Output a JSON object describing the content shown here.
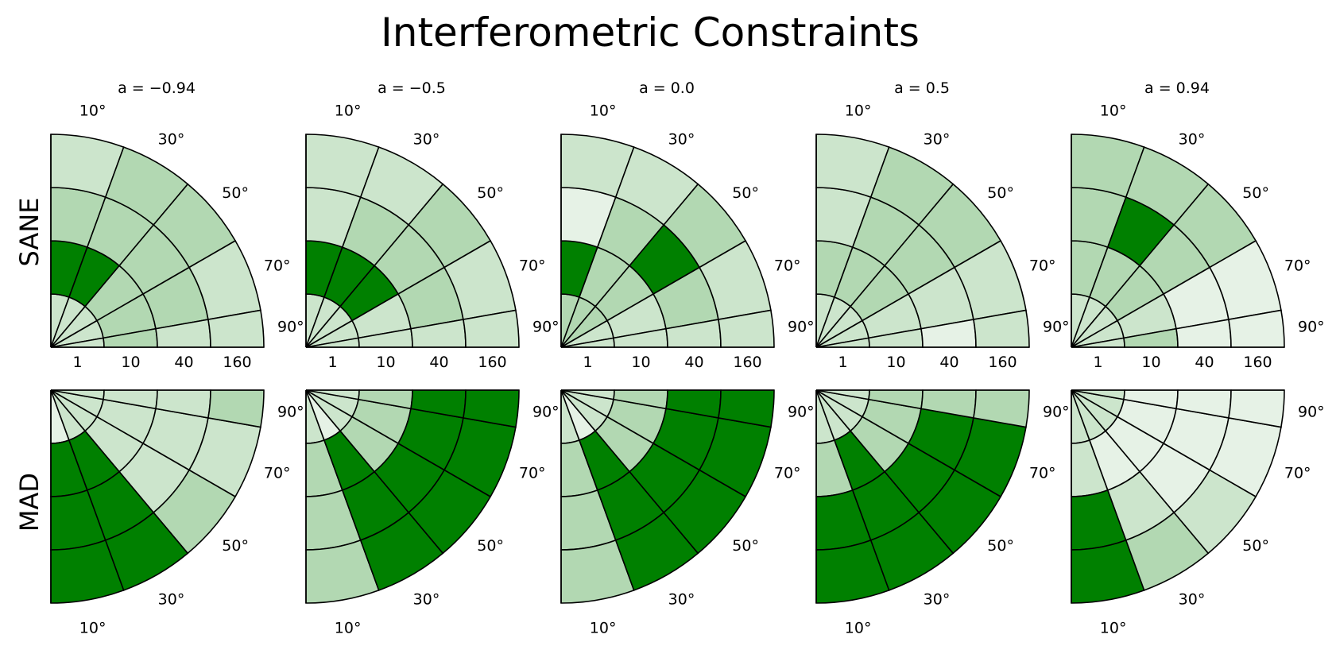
{
  "title": "Interferometric Constraints",
  "row_labels": [
    "SANE",
    "MAD"
  ],
  "chart_data": {
    "type": "heatmap",
    "title": "Interferometric Constraints",
    "projection": "polar quarter-disc (radius = R_high, angle = inclination)",
    "spin_labels": [
      "a = −0.94",
      "a = −0.5",
      "a = 0.0",
      "a = 0.5",
      "a = 0.94"
    ],
    "r_tick_labels": [
      "1",
      "10",
      "40",
      "160"
    ],
    "angle_tick_labels": [
      "10°",
      "30°",
      "50°",
      "70°",
      "90°"
    ],
    "colors": {
      "0": "#e6f2e6",
      "1": "#cce5cc",
      "2": "#b2d8b2",
      "3": "#008000"
    },
    "level_meaning": "0 = lightest green, 3 = full green (passes most constraints)",
    "grid_note": "levels[ring][angle]; ring 0 = innermost (R_high 1) to ring 3 = outermost (R_high 160); angle 0 = 10° to 4 = 90°",
    "rows": [
      {
        "name": "SANE",
        "panels": [
          {
            "spin": "a = −0.94",
            "levels": [
              [
                1,
                1,
                1,
                1,
                1
              ],
              [
                3,
                3,
                2,
                2,
                2
              ],
              [
                2,
                2,
                2,
                2,
                1
              ],
              [
                1,
                2,
                2,
                1,
                1
              ]
            ]
          },
          {
            "spin": "a = −0.5",
            "levels": [
              [
                1,
                1,
                1,
                1,
                1
              ],
              [
                3,
                3,
                3,
                1,
                1
              ],
              [
                1,
                2,
                2,
                2,
                1
              ],
              [
                1,
                1,
                2,
                1,
                1
              ]
            ]
          },
          {
            "spin": "a = 0.0",
            "levels": [
              [
                2,
                2,
                2,
                1,
                1
              ],
              [
                3,
                2,
                2,
                1,
                1
              ],
              [
                0,
                2,
                3,
                2,
                1
              ],
              [
                1,
                1,
                2,
                1,
                1
              ]
            ]
          },
          {
            "spin": "a = 0.5",
            "levels": [
              [
                1,
                1,
                1,
                1,
                1
              ],
              [
                2,
                2,
                2,
                1,
                1
              ],
              [
                1,
                2,
                2,
                1,
                0
              ],
              [
                1,
                2,
                2,
                1,
                1
              ]
            ]
          },
          {
            "spin": "a = 0.94",
            "levels": [
              [
                1,
                1,
                1,
                1,
                1
              ],
              [
                2,
                2,
                2,
                1,
                2
              ],
              [
                2,
                3,
                2,
                0,
                0
              ],
              [
                2,
                2,
                2,
                0,
                0
              ]
            ]
          }
        ]
      },
      {
        "name": "MAD",
        "panels": [
          {
            "spin": "a = −0.94",
            "levels": [
              [
                0,
                1,
                1,
                1,
                1
              ],
              [
                3,
                3,
                1,
                1,
                1
              ],
              [
                3,
                3,
                1,
                1,
                1
              ],
              [
                3,
                3,
                2,
                1,
                2
              ]
            ]
          },
          {
            "spin": "a = −0.5",
            "levels": [
              [
                1,
                0,
                1,
                1,
                1
              ],
              [
                2,
                3,
                2,
                2,
                2
              ],
              [
                2,
                3,
                3,
                3,
                3
              ],
              [
                2,
                3,
                3,
                3,
                3
              ]
            ]
          },
          {
            "spin": "a = 0.0",
            "levels": [
              [
                1,
                0,
                1,
                1,
                1
              ],
              [
                2,
                3,
                2,
                2,
                2
              ],
              [
                2,
                3,
                3,
                3,
                3
              ],
              [
                2,
                3,
                3,
                3,
                3
              ]
            ]
          },
          {
            "spin": "a = 0.5",
            "levels": [
              [
                1,
                1,
                1,
                1,
                1
              ],
              [
                2,
                3,
                2,
                2,
                2
              ],
              [
                3,
                3,
                3,
                3,
                2
              ],
              [
                3,
                3,
                3,
                3,
                2
              ]
            ]
          },
          {
            "spin": "a = 0.94",
            "levels": [
              [
                1,
                1,
                1,
                1,
                1
              ],
              [
                1,
                0,
                0,
                0,
                0
              ],
              [
                3,
                1,
                0,
                0,
                0
              ],
              [
                3,
                2,
                1,
                0,
                0
              ]
            ]
          }
        ]
      }
    ]
  }
}
